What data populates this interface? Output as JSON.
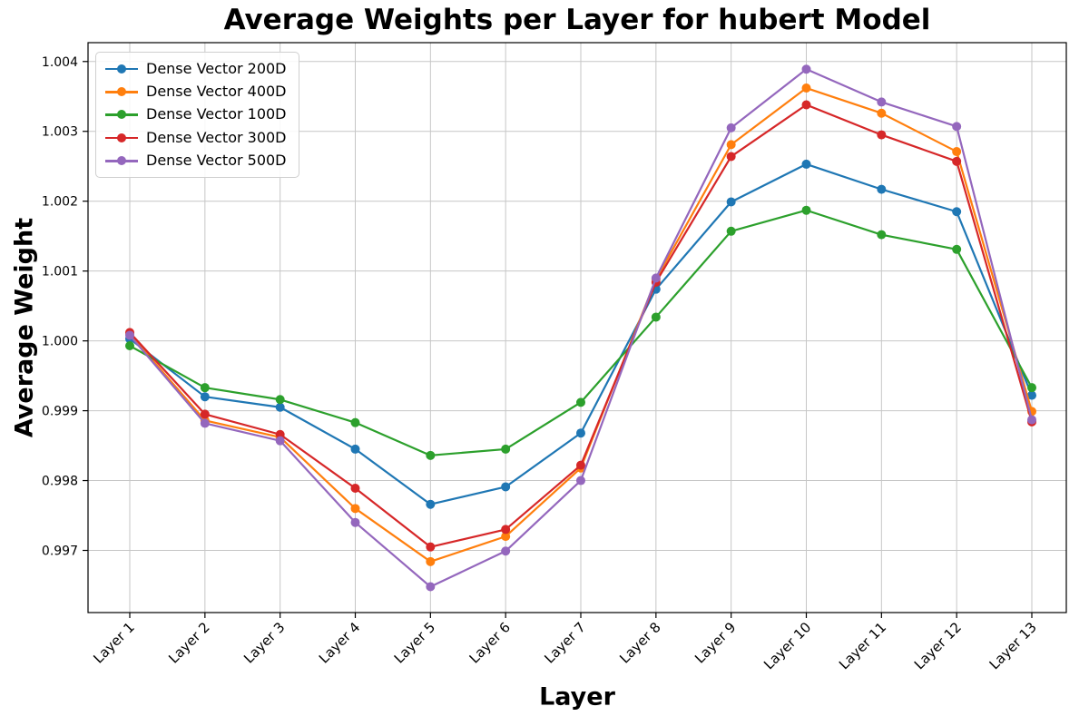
{
  "chart_data": {
    "type": "line",
    "title": "Average Weights per Layer for hubert Model",
    "xlabel": "Layer",
    "ylabel": "Average Weight",
    "categories": [
      "Layer 1",
      "Layer 2",
      "Layer 3",
      "Layer 4",
      "Layer 5",
      "Layer 6",
      "Layer 7",
      "Layer 8",
      "Layer 9",
      "Layer 10",
      "Layer 11",
      "Layer 12",
      "Layer 13"
    ],
    "series": [
      {
        "name": "Dense Vector 200D",
        "color": "#1f77b4",
        "values": [
          1.00003,
          0.9992,
          0.99905,
          0.99845,
          0.99766,
          0.99791,
          0.99868,
          1.00074,
          1.00199,
          1.00253,
          1.00217,
          1.00185,
          0.99922
        ]
      },
      {
        "name": "Dense Vector 400D",
        "color": "#ff7f0e",
        "values": [
          1.0001,
          0.99886,
          0.99862,
          0.9976,
          0.99684,
          0.9972,
          0.99818,
          1.00088,
          1.00281,
          1.00362,
          1.00326,
          1.00271,
          0.99899
        ]
      },
      {
        "name": "Dense Vector 100D",
        "color": "#2ca02c",
        "values": [
          0.99993,
          0.99933,
          0.99916,
          0.99883,
          0.99836,
          0.99845,
          0.99912,
          1.00034,
          1.00157,
          1.00187,
          1.00152,
          1.00131,
          0.99933
        ]
      },
      {
        "name": "Dense Vector 300D",
        "color": "#d62728",
        "values": [
          1.00012,
          0.99895,
          0.99866,
          0.99789,
          0.99705,
          0.9973,
          0.99822,
          1.00084,
          1.00264,
          1.00338,
          1.00295,
          1.00257,
          0.99884
        ]
      },
      {
        "name": "Dense Vector 500D",
        "color": "#9467bd",
        "values": [
          1.00008,
          0.99882,
          0.99857,
          0.9974,
          0.99648,
          0.99699,
          0.998,
          1.0009,
          1.00305,
          1.00389,
          1.00342,
          1.00307,
          0.99887
        ]
      }
    ],
    "yticks": [
      0.997,
      0.998,
      0.999,
      1.0,
      1.001,
      1.002,
      1.003,
      1.004
    ],
    "ylim": [
      0.99611,
      1.00427
    ],
    "grid": true,
    "legend_position": "upper-left",
    "marker": "circle",
    "grid_color": "#c6c6c6",
    "spine_color": "#000000"
  }
}
